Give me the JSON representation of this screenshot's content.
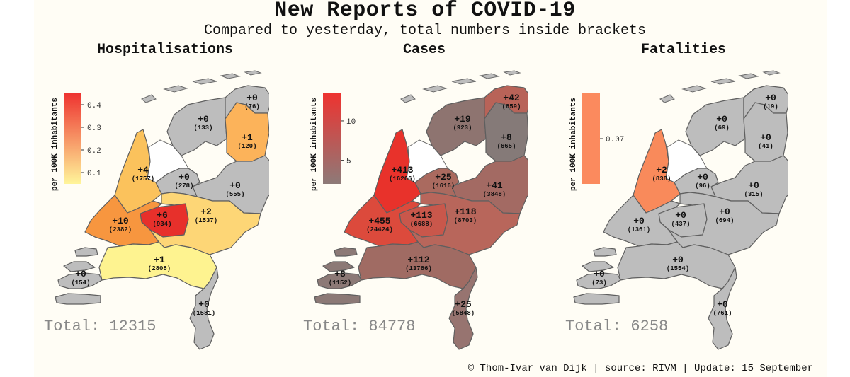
{
  "title": "New Reports of COVID-19",
  "subtitle": "Compared to yesterday, total numbers inside brackets",
  "footer": "© Thom-Ivar van Dijk | source: RIVM | Update: 15 September",
  "legend_label": "per 100K inhabitants",
  "panels": [
    {
      "title": "Hospitalisations",
      "total": "Total: 12315",
      "scale": {
        "min": 0.05,
        "max": 0.45,
        "low_color": "#fff59a",
        "high_color": "#ee3330",
        "ticks": [
          0.1,
          0.2,
          0.3,
          0.4
        ],
        "tick_labels": [
          "0.1",
          "0.2",
          "0.3",
          "0.4"
        ]
      },
      "regions": [
        {
          "id": "groningen",
          "delta": "+0",
          "total": "(76)",
          "fill": "#bdbdbd"
        },
        {
          "id": "friesland",
          "delta": "+0",
          "total": "(133)",
          "fill": "#bdbdbd"
        },
        {
          "id": "drenthe",
          "delta": "+1",
          "total": "(120)",
          "fill": "#fcb35a"
        },
        {
          "id": "noord-holland",
          "delta": "+4",
          "total": "(1757)",
          "fill": "#fbc25c"
        },
        {
          "id": "flevoland",
          "delta": "+0",
          "total": "(278)",
          "fill": "#bdbdbd"
        },
        {
          "id": "overijssel",
          "delta": "+0",
          "total": "(555)",
          "fill": "#bdbdbd"
        },
        {
          "id": "zuid-holland",
          "delta": "+10",
          "total": "(2382)",
          "fill": "#f7963f"
        },
        {
          "id": "utrecht",
          "delta": "+6",
          "total": "(934)",
          "fill": "#e7302b"
        },
        {
          "id": "gelderland",
          "delta": "+2",
          "total": "(1537)",
          "fill": "#fdd676"
        },
        {
          "id": "noord-brabant",
          "delta": "+1",
          "total": "(2808)",
          "fill": "#fef390"
        },
        {
          "id": "zeeland",
          "delta": "+0",
          "total": "(154)",
          "fill": "#bdbdbd"
        },
        {
          "id": "limburg",
          "delta": "+0",
          "total": "(1581)",
          "fill": "#bdbdbd"
        }
      ]
    },
    {
      "title": "Cases",
      "total": "Total: 84778",
      "scale": {
        "min": 2,
        "max": 13.5,
        "low_color": "#8d7a78",
        "high_color": "#ee3330",
        "ticks": [
          5,
          10
        ],
        "tick_labels": [
          "5",
          "10"
        ]
      },
      "regions": [
        {
          "id": "groningen",
          "delta": "+42",
          "total": "(859)",
          "fill": "#b86358"
        },
        {
          "id": "friesland",
          "delta": "+19",
          "total": "(923)",
          "fill": "#8e7470"
        },
        {
          "id": "drenthe",
          "delta": "+8",
          "total": "(665)",
          "fill": "#857a78"
        },
        {
          "id": "noord-holland",
          "delta": "+413",
          "total": "(16266)",
          "fill": "#e8322b"
        },
        {
          "id": "flevoland",
          "delta": "+25",
          "total": "(1616)",
          "fill": "#aa6a5f"
        },
        {
          "id": "overijssel",
          "delta": "+41",
          "total": "(3848)",
          "fill": "#a36a63"
        },
        {
          "id": "zuid-holland",
          "delta": "+455",
          "total": "(24424)",
          "fill": "#dc4a3c"
        },
        {
          "id": "utrecht",
          "delta": "+113",
          "total": "(6688)",
          "fill": "#c9574b"
        },
        {
          "id": "gelderland",
          "delta": "+118",
          "total": "(8703)",
          "fill": "#b8665b"
        },
        {
          "id": "noord-brabant",
          "delta": "+112",
          "total": "(13786)",
          "fill": "#a06b63"
        },
        {
          "id": "zeeland",
          "delta": "+8",
          "total": "(1152)",
          "fill": "#8c7976"
        },
        {
          "id": "limburg",
          "delta": "+25",
          "total": "(5848)",
          "fill": "#977470"
        }
      ]
    },
    {
      "title": "Fatalities",
      "total": "Total: 6258",
      "scale": {
        "min": 0.068,
        "max": 0.072,
        "low_color": "#fb8a5e",
        "high_color": "#fb8a5e",
        "ticks": [
          0.07
        ],
        "tick_labels": [
          "0.07"
        ]
      },
      "regions": [
        {
          "id": "groningen",
          "delta": "+0",
          "total": "(19)",
          "fill": "#bdbdbd"
        },
        {
          "id": "friesland",
          "delta": "+0",
          "total": "(69)",
          "fill": "#bdbdbd"
        },
        {
          "id": "drenthe",
          "delta": "+0",
          "total": "(41)",
          "fill": "#bdbdbd"
        },
        {
          "id": "noord-holland",
          "delta": "+2",
          "total": "(838)",
          "fill": "#f98a5b"
        },
        {
          "id": "flevoland",
          "delta": "+0",
          "total": "(96)",
          "fill": "#bdbdbd"
        },
        {
          "id": "overijssel",
          "delta": "+0",
          "total": "(315)",
          "fill": "#bdbdbd"
        },
        {
          "id": "zuid-holland",
          "delta": "+0",
          "total": "(1361)",
          "fill": "#bdbdbd"
        },
        {
          "id": "utrecht",
          "delta": "+0",
          "total": "(437)",
          "fill": "#bdbdbd"
        },
        {
          "id": "gelderland",
          "delta": "+0",
          "total": "(694)",
          "fill": "#bdbdbd"
        },
        {
          "id": "noord-brabant",
          "delta": "+0",
          "total": "(1554)",
          "fill": "#bdbdbd"
        },
        {
          "id": "zeeland",
          "delta": "+0",
          "total": "(73)",
          "fill": "#bdbdbd"
        },
        {
          "id": "limburg",
          "delta": "+0",
          "total": "(761)",
          "fill": "#bdbdbd"
        }
      ]
    }
  ]
}
